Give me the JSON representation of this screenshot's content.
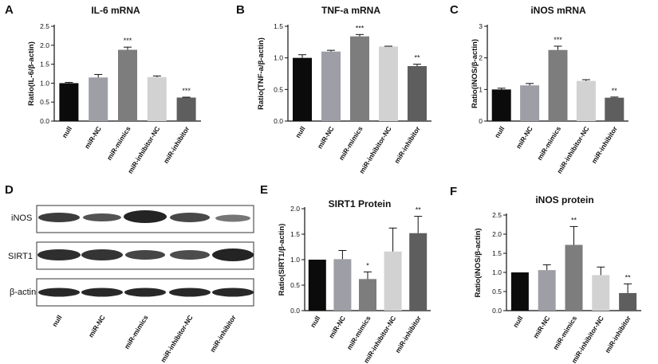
{
  "panels": {
    "A": "A",
    "B": "B",
    "C": "C",
    "D": "D",
    "E": "E",
    "F": "F"
  },
  "blot": {
    "row_labels": [
      "iNOS",
      "SIRT1",
      "β-actin"
    ],
    "categories": [
      "null",
      "miR-NC",
      "miR-mimics",
      "miR-inhibitor-NC",
      "miR-inhibitor"
    ]
  },
  "colors": {
    "bars": [
      "#0b0b0b",
      "#9e9ea6",
      "#7d7d7d",
      "#d2d2d2",
      "#5e5e5e"
    ]
  },
  "chart_data": [
    {
      "type": "bar",
      "title": "IL-6 mRNA",
      "ylabel": "Ratio(IL-6/β-actin)",
      "xlabel": "",
      "categories": [
        "null",
        "miR-NC",
        "miR-mimics",
        "miR-inhibitor-NC",
        "miR-inhibitor"
      ],
      "values": [
        1.0,
        1.15,
        1.88,
        1.16,
        0.62
      ],
      "errors": [
        0.02,
        0.08,
        0.07,
        0.03,
        0.01
      ],
      "significance": [
        "",
        "",
        "***",
        "",
        "***"
      ],
      "ylim": [
        0,
        2.5
      ],
      "yticks": [
        0,
        0.5,
        1.0,
        1.5,
        2.0,
        2.5
      ],
      "ytick_labels": [
        "0.0",
        "0.5",
        "1.0",
        "1.5",
        "2.0",
        "2.5"
      ]
    },
    {
      "type": "bar",
      "title": "TNF-a mRNA",
      "ylabel": "Ratio(TNF-a/β-actin)",
      "xlabel": "",
      "categories": [
        "null",
        "miR-NC",
        "miR-mimics",
        "miR-inhibitor-NC",
        "miR-inhibitor"
      ],
      "values": [
        1.0,
        1.1,
        1.34,
        1.18,
        0.87
      ],
      "errors": [
        0.05,
        0.02,
        0.03,
        0.005,
        0.03
      ],
      "significance": [
        "",
        "",
        "***",
        "",
        "**"
      ],
      "ylim": [
        0,
        1.5
      ],
      "yticks": [
        0,
        0.5,
        1.0,
        1.5
      ],
      "ytick_labels": [
        "0.0",
        "0.5",
        "1.0",
        "1.5"
      ]
    },
    {
      "type": "bar",
      "title": "iNOS mRNA",
      "ylabel": "Ratio(iNOS/β-actin)",
      "xlabel": "",
      "categories": [
        "null",
        "miR-NC",
        "miR-mimics",
        "miR-inhibitor-NC",
        "miR-inhibitor"
      ],
      "values": [
        1.0,
        1.13,
        2.25,
        1.27,
        0.74
      ],
      "errors": [
        0.04,
        0.06,
        0.12,
        0.04,
        0.02
      ],
      "significance": [
        "",
        "",
        "***",
        "",
        "**"
      ],
      "ylim": [
        0,
        3
      ],
      "yticks": [
        0,
        1,
        2,
        3
      ],
      "ytick_labels": [
        "0",
        "1",
        "2",
        "3"
      ]
    },
    {
      "type": "bar",
      "title": "SIRT1 Protein",
      "ylabel": "Ratio(SIRT1/β-actin)",
      "xlabel": "",
      "categories": [
        "null",
        "miR-NC",
        "miR-mimics",
        "miR-inhibitor-NC",
        "miR-inhibitor"
      ],
      "values": [
        1.0,
        1.01,
        0.62,
        1.16,
        1.52
      ],
      "errors": [
        0.0,
        0.17,
        0.14,
        0.46,
        0.33
      ],
      "significance": [
        "",
        "",
        "*",
        "",
        "**"
      ],
      "ylim": [
        0,
        2.0
      ],
      "yticks": [
        0,
        0.5,
        1.0,
        1.5,
        2.0
      ],
      "ytick_labels": [
        "0.0",
        "0.5",
        "1.0",
        "1.5",
        "2.0"
      ]
    },
    {
      "type": "bar",
      "title": "iNOS protein",
      "ylabel": "Ratio(iNOS/β-actin)",
      "xlabel": "",
      "categories": [
        "null",
        "miR-NC",
        "miR-mimics",
        "miR-inhibitor-NC",
        "miR-inhibitor"
      ],
      "values": [
        1.0,
        1.06,
        1.72,
        0.93,
        0.46
      ],
      "errors": [
        0.0,
        0.14,
        0.48,
        0.21,
        0.24
      ],
      "significance": [
        "",
        "",
        "**",
        "",
        "**"
      ],
      "ylim": [
        0,
        2.5
      ],
      "yticks": [
        0,
        0.5,
        1.0,
        1.5,
        2.0,
        2.5
      ],
      "ytick_labels": [
        "0.0",
        "0.5",
        "1.0",
        "1.5",
        "2.0",
        "2.5"
      ]
    }
  ]
}
